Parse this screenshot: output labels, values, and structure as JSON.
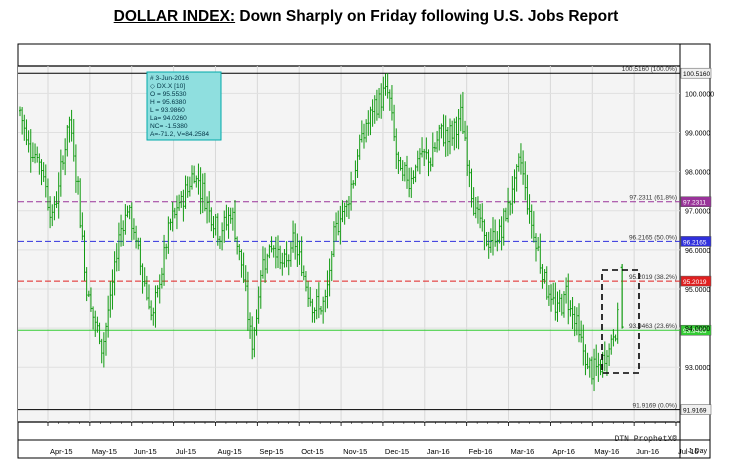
{
  "title": {
    "lead": "DOLLAR INDEX:",
    "rest": " Down Sharply on Friday following U.S. Jobs Report"
  },
  "info_box": {
    "lines": [
      "# 3-Jun-2016",
      "◇ DX.X [10]",
      "O = 95.5530",
      "H = 95.6380",
      "L = 93.9860",
      "La= 94.0260",
      "NC= -1.5380",
      "A=-71.2, V=84.2584"
    ]
  },
  "watermark": "DTN ProphetX®",
  "right_edge_label": "1 Day",
  "colors": {
    "bars": "#109a10",
    "fib_0": "#000000",
    "fib_236": "#33cc33",
    "fib_382": "#e02020",
    "fib_50": "#3030dd",
    "fib_618": "#993399",
    "fib_100": "#000000",
    "highlight_box": "#000000"
  },
  "chart_data": {
    "type": "ohlc",
    "series_name": "DX.X",
    "ylim": [
      91.6,
      100.7
    ],
    "y_ticks": [
      "100.0000",
      "99.0000",
      "98.0000",
      "97.0000",
      "96.0000",
      "95.0000",
      "94.0000",
      "93.0000"
    ],
    "x_ticks": [
      "Apr-15",
      "May-15",
      "Jun-15",
      "Jul-15",
      "Aug-15",
      "Sep-15",
      "Oct-15",
      "Nov-15",
      "Dec-15",
      "Jan-16",
      "Feb-16",
      "Mar-16",
      "Apr-16",
      "May-16",
      "Jun-16",
      "Jul-16"
    ],
    "fib_levels": [
      {
        "label": "100.5160 (100.0%)",
        "axis_label": "100.5160",
        "value": 100.516,
        "key": "fib_100"
      },
      {
        "label": "97.2311 (61.8%)",
        "axis_label": "97.2311",
        "value": 97.2311,
        "key": "fib_618"
      },
      {
        "label": "96.2165 (50.0%)",
        "axis_label": "96.2165",
        "value": 96.2165,
        "key": "fib_50"
      },
      {
        "label": "95.2019 (38.2%)",
        "axis_label": "95.2019",
        "value": 95.2019,
        "key": "fib_382"
      },
      {
        "label": "93.9463 (23.6%)",
        "axis_label": "93.9463",
        "value": 93.9463,
        "key": "fib_236"
      },
      {
        "label": "91.9169 (0.0%)",
        "axis_label": "91.9169",
        "value": 91.9169,
        "key": "fib_0"
      }
    ],
    "trend": [
      [
        "Mar-15",
        100.3
      ],
      [
        "Mar-15",
        98.8
      ],
      [
        "Mar-15",
        98.2
      ],
      [
        "Apr-15",
        96.8
      ],
      [
        "Apr-15",
        97.9
      ],
      [
        "Apr-15",
        99.4
      ],
      [
        "Apr-15",
        97.8
      ],
      [
        "Apr-15",
        95.2
      ],
      [
        "May-15",
        94.2
      ],
      [
        "May-15",
        93.5
      ],
      [
        "May-15",
        94.8
      ],
      [
        "May-15",
        96.4
      ],
      [
        "May-15",
        97.1
      ],
      [
        "Jun-15",
        96.2
      ],
      [
        "Jun-15",
        95.2
      ],
      [
        "Jun-15",
        94.2
      ],
      [
        "Jun-15",
        95.4
      ],
      [
        "Jun-15",
        96.6
      ],
      [
        "Jul-15",
        97.2
      ],
      [
        "Jul-15",
        98.0
      ],
      [
        "Jul-15",
        97.1
      ],
      [
        "Aug-15",
        96.4
      ],
      [
        "Aug-15",
        97.0
      ],
      [
        "Aug-15",
        95.6
      ],
      [
        "Aug-15",
        93.5
      ],
      [
        "Sep-15",
        95.7
      ],
      [
        "Sep-15",
        96.2
      ],
      [
        "Sep-15",
        95.5
      ],
      [
        "Sep-15",
        96.2
      ],
      [
        "Oct-15",
        95.3
      ],
      [
        "Oct-15",
        94.5
      ],
      [
        "Oct-15",
        94.6
      ],
      [
        "Oct-15",
        96.6
      ],
      [
        "Nov-15",
        97.3
      ],
      [
        "Nov-15",
        98.9
      ],
      [
        "Nov-15",
        99.7
      ],
      [
        "Dec-15",
        100.1
      ],
      [
        "Dec-15",
        98.0
      ],
      [
        "Dec-15",
        97.8
      ],
      [
        "Dec-15",
        98.4
      ],
      [
        "Jan-16",
        98.3
      ],
      [
        "Jan-16",
        99.0
      ],
      [
        "Jan-16",
        98.9
      ],
      [
        "Jan-16",
        99.4
      ],
      [
        "Feb-16",
        97.2
      ],
      [
        "Feb-16",
        96.1
      ],
      [
        "Feb-16",
        96.5
      ],
      [
        "Mar-16",
        97.6
      ],
      [
        "Mar-16",
        98.3
      ],
      [
        "Mar-16",
        96.9
      ],
      [
        "Mar-16",
        96.0
      ],
      [
        "Mar-16",
        95.1
      ],
      [
        "Apr-16",
        94.4
      ],
      [
        "Apr-16",
        94.9
      ],
      [
        "Apr-16",
        94.1
      ],
      [
        "Apr-16",
        93.0
      ],
      [
        "May-16",
        92.9
      ],
      [
        "May-16",
        93.8
      ],
      [
        "May-16",
        95.2
      ],
      [
        "Jun-16",
        95.6
      ]
    ],
    "last_bar": {
      "date": "3-Jun-2016",
      "open": 95.553,
      "high": 95.638,
      "low": 93.986,
      "close": 94.026
    },
    "annotation": "dashed box around early June 2016 bars"
  }
}
